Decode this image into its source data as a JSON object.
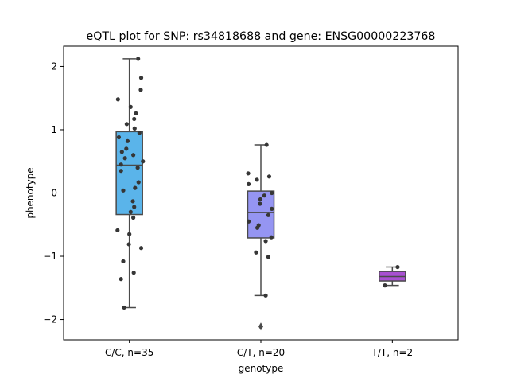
{
  "chart_data": {
    "type": "box",
    "title": "eQTL plot for SNP: rs34818688 and gene: ENSG00000223768",
    "xlabel": "genotype",
    "ylabel": "phenotype",
    "categories": [
      "C/C, n=35",
      "C/T, n=20",
      "T/T, n=2"
    ],
    "ylim": [
      -2.32,
      2.32
    ],
    "yticks": [
      -2,
      -1,
      0,
      1,
      2
    ],
    "ytick_labels": [
      "−2",
      "−1",
      "0",
      "1",
      "2"
    ],
    "grid": false,
    "legend": "none",
    "boxes": [
      {
        "category": "C/C, n=35",
        "color": "#5ab4ea",
        "whisker_low": -1.81,
        "q1": -0.34,
        "median": 0.44,
        "q3": 0.97,
        "whisker_high": 2.12,
        "outliers": [],
        "points": [
          {
            "dx": 0.2,
            "y": 2.12
          },
          {
            "dx": 0.27,
            "y": 1.82
          },
          {
            "dx": 0.26,
            "y": 1.63
          },
          {
            "dx": -0.26,
            "y": 1.48
          },
          {
            "dx": 0.03,
            "y": 1.36
          },
          {
            "dx": 0.15,
            "y": 1.26
          },
          {
            "dx": 0.11,
            "y": 1.17
          },
          {
            "dx": -0.06,
            "y": 1.09
          },
          {
            "dx": 0.12,
            "y": 1.02
          },
          {
            "dx": 0.23,
            "y": 0.95
          },
          {
            "dx": -0.24,
            "y": 0.88
          },
          {
            "dx": -0.04,
            "y": 0.82
          },
          {
            "dx": -0.07,
            "y": 0.7
          },
          {
            "dx": -0.17,
            "y": 0.65
          },
          {
            "dx": 0.09,
            "y": 0.6
          },
          {
            "dx": -0.1,
            "y": 0.55
          },
          {
            "dx": 0.31,
            "y": 0.5
          },
          {
            "dx": -0.19,
            "y": 0.45
          },
          {
            "dx": 0.19,
            "y": 0.4
          },
          {
            "dx": -0.19,
            "y": 0.35
          },
          {
            "dx": 0.21,
            "y": 0.17
          },
          {
            "dx": 0.13,
            "y": 0.08
          },
          {
            "dx": -0.14,
            "y": 0.04
          },
          {
            "dx": 0.08,
            "y": -0.13
          },
          {
            "dx": 0.11,
            "y": -0.22
          },
          {
            "dx": 0.03,
            "y": -0.3
          },
          {
            "dx": 0.09,
            "y": -0.39
          },
          {
            "dx": -0.27,
            "y": -0.59
          },
          {
            "dx": 0.0,
            "y": -0.65
          },
          {
            "dx": -0.01,
            "y": -0.81
          },
          {
            "dx": 0.27,
            "y": -0.87
          },
          {
            "dx": -0.14,
            "y": -1.08
          },
          {
            "dx": 0.1,
            "y": -1.26
          },
          {
            "dx": -0.19,
            "y": -1.36
          },
          {
            "dx": -0.12,
            "y": -1.81
          }
        ]
      },
      {
        "category": "C/T, n=20",
        "color": "#9595f2",
        "whisker_low": -1.62,
        "q1": -0.71,
        "median": -0.31,
        "q3": 0.03,
        "whisker_high": 0.76,
        "outliers": [
          -2.11
        ],
        "points": [
          {
            "dx": 0.13,
            "y": 0.76
          },
          {
            "dx": -0.29,
            "y": 0.31
          },
          {
            "dx": 0.19,
            "y": 0.26
          },
          {
            "dx": -0.09,
            "y": 0.21
          },
          {
            "dx": -0.28,
            "y": 0.14
          },
          {
            "dx": 0.25,
            "y": 0.0
          },
          {
            "dx": 0.08,
            "y": -0.04
          },
          {
            "dx": -0.01,
            "y": -0.1
          },
          {
            "dx": -0.02,
            "y": -0.17
          },
          {
            "dx": 0.25,
            "y": -0.25
          },
          {
            "dx": 0.17,
            "y": -0.35
          },
          {
            "dx": -0.28,
            "y": -0.45
          },
          {
            "dx": -0.05,
            "y": -0.51
          },
          {
            "dx": -0.08,
            "y": -0.55
          },
          {
            "dx": 0.24,
            "y": -0.7
          },
          {
            "dx": 0.11,
            "y": -0.76
          },
          {
            "dx": -0.11,
            "y": -0.94
          },
          {
            "dx": 0.17,
            "y": -1.01
          },
          {
            "dx": 0.11,
            "y": -1.62
          }
        ]
      },
      {
        "category": "T/T, n=2",
        "color": "#a950d2",
        "whisker_low": -1.46,
        "q1": -1.39,
        "median": -1.32,
        "q3": -1.24,
        "whisker_high": -1.17,
        "outliers": [],
        "points": [
          {
            "dx": -0.17,
            "y": -1.46
          },
          {
            "dx": 0.12,
            "y": -1.17
          }
        ]
      }
    ]
  }
}
